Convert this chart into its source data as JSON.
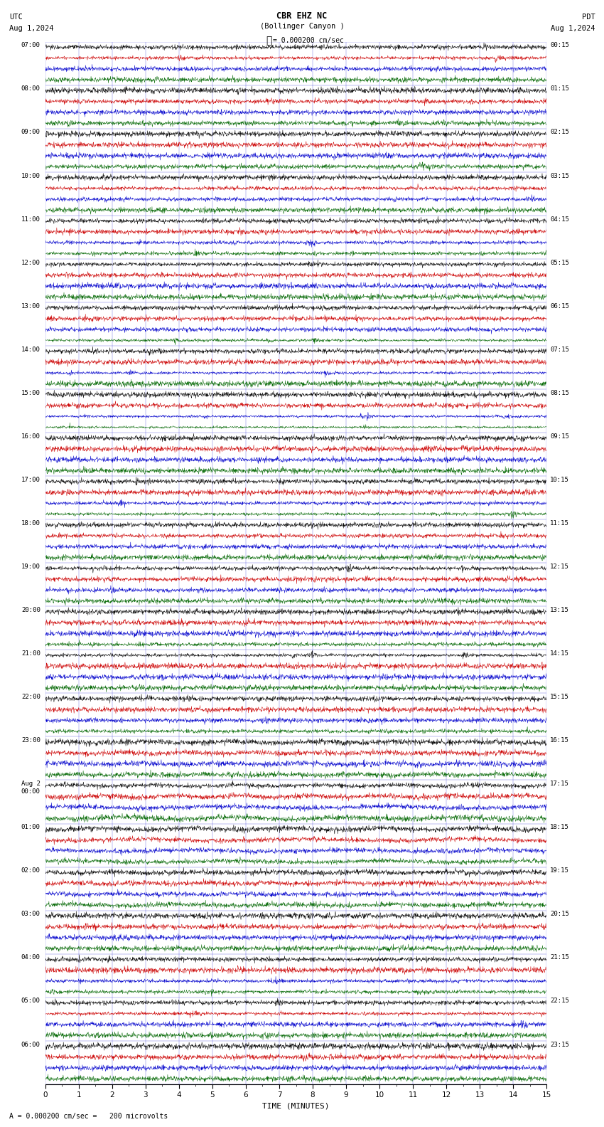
{
  "title_line1": "CBR EHZ NC",
  "title_line2": "(Bollinger Canyon )",
  "scale_label": "= 0.000200 cm/sec",
  "left_header_line1": "UTC",
  "left_header_line2": "Aug 1,2024",
  "right_header_line1": "PDT",
  "right_header_line2": "Aug 1,2024",
  "bottom_label": "A = 0.000200 cm/sec =   200 microvolts",
  "xlabel": "TIME (MINUTES)",
  "bg_color": "#ffffff",
  "grid_color": "#0000cc",
  "trace_colors": [
    "#000000",
    "#cc0000",
    "#0000cc",
    "#006600"
  ],
  "n_hours": 24,
  "traces_per_hour": 4,
  "utc_labels": [
    "07:00",
    "08:00",
    "09:00",
    "10:00",
    "11:00",
    "12:00",
    "13:00",
    "14:00",
    "15:00",
    "16:00",
    "17:00",
    "18:00",
    "19:00",
    "20:00",
    "21:00",
    "22:00",
    "23:00",
    "Aug 2",
    "01:00",
    "02:00",
    "03:00",
    "04:00",
    "05:00",
    "06:00"
  ],
  "utc_sublabels": [
    "",
    "",
    "",
    "",
    "",
    "",
    "",
    "",
    "",
    "",
    "",
    "",
    "",
    "",
    "",
    "",
    "",
    "00:00",
    "",
    "",
    "",
    "",
    "",
    ""
  ],
  "pdt_labels": [
    "00:15",
    "01:15",
    "02:15",
    "03:15",
    "04:15",
    "05:15",
    "06:15",
    "07:15",
    "08:15",
    "09:15",
    "10:15",
    "11:15",
    "12:15",
    "13:15",
    "14:15",
    "15:15",
    "16:15",
    "17:15",
    "18:15",
    "19:15",
    "20:15",
    "21:15",
    "22:15",
    "23:15"
  ],
  "xmin": 0,
  "xmax": 15,
  "xticks": [
    0,
    1,
    2,
    3,
    4,
    5,
    6,
    7,
    8,
    9,
    10,
    11,
    12,
    13,
    14,
    15
  ],
  "n_time_points": 1800,
  "active_hours": [
    17,
    18
  ],
  "medium_hours": [
    16,
    19
  ]
}
